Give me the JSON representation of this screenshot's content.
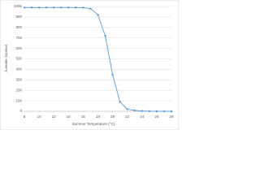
{
  "chart_data": {
    "type": "line",
    "x_label": "Summer Temperature (°C)",
    "y_label": "Juvenile Survival",
    "x": [
      8,
      9,
      10,
      11,
      12,
      13,
      14,
      15,
      16,
      17,
      18,
      19,
      20,
      21,
      22,
      23,
      24,
      25,
      26,
      27,
      28
    ],
    "values": [
      990,
      990,
      990,
      990,
      990,
      990,
      990,
      990,
      988,
      980,
      920,
      720,
      350,
      90,
      20,
      8,
      3,
      1,
      0,
      0,
      0
    ],
    "color": "#5b9bd5",
    "xlim": [
      8,
      28
    ],
    "xticks": [
      8,
      10,
      12,
      14,
      16,
      18,
      20,
      22,
      24,
      26,
      28
    ],
    "ylim": [
      0,
      1000
    ],
    "yticks": [
      0,
      100,
      200,
      300,
      400,
      500,
      600,
      700,
      800,
      900,
      1000
    ],
    "grid": true
  }
}
